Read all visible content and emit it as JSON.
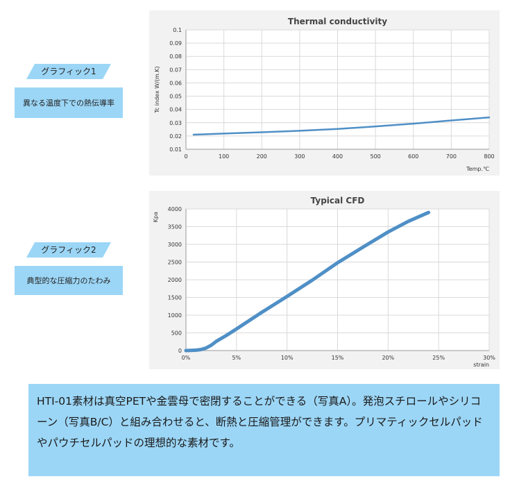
{
  "sidebar": {
    "graphic1": {
      "tag": "グラフィック1",
      "caption": "異なる温度下での熱伝導率"
    },
    "graphic2": {
      "tag": "グラフィック2",
      "caption": "典型的な圧縮力のたわみ"
    }
  },
  "description": "HTI-01素材は真空PETや金雲母で密閉することができる（写真A）。発泡スチロールやシリコーン（写真B/C）と組み合わせると、断熱と圧縮管理ができます。プリマティックセルパッドやパウチセルパッドの理想的な素材です。",
  "colors": {
    "accent": "#9cd6f6",
    "line": "#4f8fc6",
    "panel": "#f2f2f2"
  },
  "chart_data": [
    {
      "type": "line",
      "title": "Thermal conductivity",
      "ylabel": "Tc index W/(m.K)",
      "xlabel": "Temp.℃",
      "xlim": [
        0,
        800
      ],
      "ylim": [
        0.01,
        0.1
      ],
      "xticks": [
        0,
        100,
        200,
        300,
        400,
        500,
        600,
        700,
        800
      ],
      "yticks": [
        0.01,
        0.02,
        0.03,
        0.04,
        0.05,
        0.06,
        0.07,
        0.08,
        0.09,
        0.1
      ],
      "ytick_labels": [
        "0.01",
        "0.02",
        "0.03",
        "0.04",
        "0.05",
        "0.06",
        "0.07",
        "0.08",
        "0.09",
        "0.1"
      ],
      "grid": true,
      "series": [
        {
          "x": [
            20,
            100,
            200,
            300,
            400,
            500,
            600,
            700,
            800
          ],
          "y": [
            0.021,
            0.0218,
            0.0228,
            0.0239,
            0.0253,
            0.0272,
            0.0293,
            0.0317,
            0.034
          ]
        }
      ]
    },
    {
      "type": "line",
      "title": "Typical CFD",
      "ylabel": "Kpa",
      "xlabel": "strain",
      "xlim": [
        0,
        30
      ],
      "ylim": [
        0,
        4000
      ],
      "xticks": [
        0,
        5,
        10,
        15,
        20,
        25,
        30
      ],
      "xtick_labels": [
        "0%",
        "5%",
        "10%",
        "15%",
        "20%",
        "25%",
        "30%"
      ],
      "yticks": [
        0,
        500,
        1000,
        1500,
        2000,
        2500,
        3000,
        3500,
        4000
      ],
      "ytick_labels": [
        "0",
        "500",
        "1000",
        "1500",
        "2000",
        "2500",
        "3000",
        "3500",
        "4000"
      ],
      "grid": true,
      "series": [
        {
          "x": [
            0,
            0.5,
            1,
            1.5,
            2,
            2.5,
            3,
            4,
            5,
            7.5,
            10,
            12.5,
            15,
            17.5,
            20,
            22,
            24
          ],
          "y": [
            0,
            5,
            12,
            30,
            75,
            150,
            260,
            430,
            610,
            1080,
            1530,
            1990,
            2480,
            2920,
            3350,
            3650,
            3900
          ]
        }
      ]
    }
  ]
}
